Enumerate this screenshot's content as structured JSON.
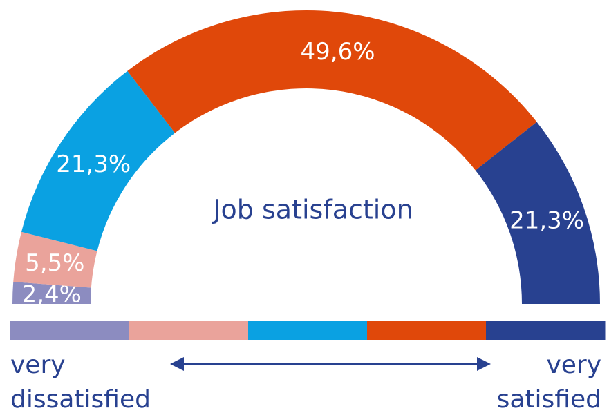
{
  "chart_data": {
    "type": "semidonut",
    "title": "Job satisfaction",
    "values": [
      2.4,
      5.5,
      21.3,
      49.6,
      21.3
    ],
    "value_labels": [
      "2,4%",
      "5,5%",
      "21,3%",
      "49,6%",
      "21,3%"
    ],
    "colors": [
      "#8c8cc0",
      "#eaa39b",
      "#0aa1e2",
      "#e0480a",
      "#284190"
    ],
    "annotations": {
      "left": [
        "very",
        "dissatisfied"
      ],
      "right": [
        "very",
        "satisfied"
      ]
    }
  }
}
